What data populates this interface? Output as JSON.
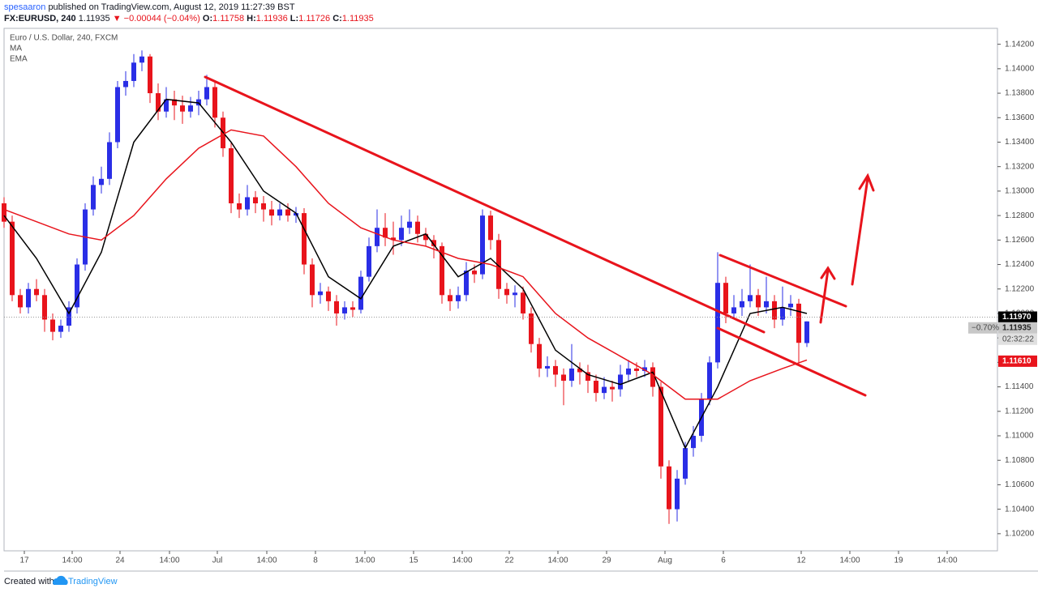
{
  "header": {
    "author": "spesaaron",
    "published": "published on TradingView.com, August 12, 2019 11:27:39 BST",
    "symbol": "FX:EURUSD, 240",
    "last": "1.11935",
    "change": "▼ −0.00044 (−0.04%)",
    "ohlc": [
      {
        "label": "O:",
        "value": "1.11758"
      },
      {
        "label": "H:",
        "value": "1.11936"
      },
      {
        "label": "L:",
        "value": "1.11726"
      },
      {
        "label": "C:",
        "value": "1.11935"
      }
    ]
  },
  "footer": {
    "created": "Created with",
    "brand": "TradingView"
  },
  "chart_data": {
    "type": "candlestick",
    "title": "Euro / U.S. Dollar, 240, FXCM",
    "up_color": "#2a2ee6",
    "down_color": "#e8141c",
    "grid": false,
    "open": [
      1.129,
      1.1275,
      1.1215,
      1.1205,
      1.122,
      1.1215,
      1.1195,
      1.1185,
      1.119,
      1.1205,
      1.124,
      1.1285,
      1.1305,
      1.131,
      1.134,
      1.1385,
      1.139,
      1.1405,
      1.141,
      1.138,
      1.1365,
      1.1375,
      1.137,
      1.1365,
      1.137,
      1.1375,
      1.1385,
      1.136,
      1.1335,
      1.129,
      1.1285,
      1.1295,
      1.129,
      1.1285,
      1.128,
      1.1285,
      1.128,
      1.1282,
      1.124,
      1.1215,
      1.1218,
      1.121,
      1.12,
      1.1205,
      1.1203,
      1.123,
      1.1255,
      1.127,
      1.1262,
      1.126,
      1.127,
      1.1275,
      1.1265,
      1.126,
      1.1255,
      1.1215,
      1.121,
      1.1215,
      1.1235,
      1.1232,
      1.128,
      1.126,
      1.122,
      1.1215,
      1.1217,
      1.12,
      1.1175,
      1.1155,
      1.1157,
      1.115,
      1.1145,
      1.1155,
      1.1152,
      1.1145,
      1.1135,
      1.114,
      1.1138,
      1.115,
      1.1155,
      1.1153,
      1.1156,
      1.114,
      1.1075,
      1.104,
      1.1065,
      1.109,
      1.11,
      1.113,
      1.116,
      1.1225,
      1.12,
      1.1205,
      1.121,
      1.1215,
      1.1205,
      1.121,
      1.1195,
      1.1205,
      1.1208,
      1.11758
    ],
    "high": [
      1.1295,
      1.128,
      1.122,
      1.1225,
      1.1228,
      1.122,
      1.12,
      1.1195,
      1.121,
      1.1245,
      1.129,
      1.1312,
      1.132,
      1.1348,
      1.139,
      1.1398,
      1.1412,
      1.1415,
      1.1412,
      1.1388,
      1.1385,
      1.1382,
      1.1378,
      1.1377,
      1.1382,
      1.1395,
      1.139,
      1.1365,
      1.134,
      1.1298,
      1.1305,
      1.13,
      1.1296,
      1.1292,
      1.129,
      1.129,
      1.1287,
      1.1286,
      1.1245,
      1.1225,
      1.1222,
      1.1215,
      1.121,
      1.121,
      1.1235,
      1.1262,
      1.1285,
      1.1282,
      1.1275,
      1.128,
      1.1285,
      1.128,
      1.127,
      1.1264,
      1.1258,
      1.122,
      1.1222,
      1.1242,
      1.124,
      1.1285,
      1.1284,
      1.1265,
      1.1225,
      1.1223,
      1.1222,
      1.1205,
      1.118,
      1.1165,
      1.1162,
      1.1155,
      1.1175,
      1.116,
      1.1158,
      1.115,
      1.1148,
      1.1145,
      1.1158,
      1.1162,
      1.116,
      1.1162,
      1.116,
      1.1144,
      1.108,
      1.1072,
      1.1095,
      1.1108,
      1.1135,
      1.1165,
      1.125,
      1.123,
      1.1215,
      1.122,
      1.124,
      1.122,
      1.123,
      1.1215,
      1.1222,
      1.1215,
      1.1212,
      1.11936
    ],
    "low": [
      1.127,
      1.121,
      1.12,
      1.12,
      1.121,
      1.1185,
      1.1178,
      1.118,
      1.1185,
      1.12,
      1.1235,
      1.128,
      1.1298,
      1.1305,
      1.1335,
      1.1378,
      1.1385,
      1.1398,
      1.1372,
      1.1358,
      1.136,
      1.1358,
      1.1355,
      1.136,
      1.1362,
      1.137,
      1.1352,
      1.1328,
      1.1282,
      1.1278,
      1.128,
      1.1282,
      1.1275,
      1.1272,
      1.1276,
      1.1275,
      1.1274,
      1.1232,
      1.1205,
      1.1208,
      1.1202,
      1.119,
      1.1195,
      1.1197,
      1.12,
      1.1226,
      1.125,
      1.1255,
      1.1248,
      1.1255,
      1.1265,
      1.1258,
      1.1255,
      1.1245,
      1.1208,
      1.1202,
      1.1204,
      1.121,
      1.1225,
      1.1228,
      1.1252,
      1.1212,
      1.1208,
      1.1205,
      1.1195,
      1.1168,
      1.1148,
      1.1148,
      1.114,
      1.1125,
      1.114,
      1.1142,
      1.1135,
      1.1128,
      1.113,
      1.1128,
      1.1132,
      1.1145,
      1.1148,
      1.1148,
      1.1132,
      1.1065,
      1.1028,
      1.103,
      1.106,
      1.1083,
      1.1095,
      1.1125,
      1.1155,
      1.1192,
      1.1195,
      1.1198,
      1.1205,
      1.1198,
      1.12,
      1.1188,
      1.119,
      1.1198,
      1.116,
      1.11726
    ],
    "close": [
      1.1275,
      1.1215,
      1.1205,
      1.122,
      1.1215,
      1.1195,
      1.1185,
      1.119,
      1.1205,
      1.124,
      1.1285,
      1.1305,
      1.131,
      1.134,
      1.1385,
      1.139,
      1.1405,
      1.141,
      1.138,
      1.1365,
      1.1375,
      1.137,
      1.1365,
      1.137,
      1.1375,
      1.1385,
      1.136,
      1.1335,
      1.129,
      1.1285,
      1.1295,
      1.129,
      1.1285,
      1.128,
      1.1285,
      1.128,
      1.1282,
      1.124,
      1.1215,
      1.1218,
      1.121,
      1.12,
      1.1205,
      1.1203,
      1.123,
      1.1255,
      1.127,
      1.1262,
      1.126,
      1.127,
      1.1275,
      1.1265,
      1.126,
      1.1255,
      1.1215,
      1.121,
      1.1215,
      1.1235,
      1.1232,
      1.128,
      1.126,
      1.122,
      1.1215,
      1.1217,
      1.12,
      1.1175,
      1.1155,
      1.1157,
      1.115,
      1.1145,
      1.1155,
      1.1152,
      1.1145,
      1.1135,
      1.114,
      1.1138,
      1.115,
      1.1155,
      1.1153,
      1.1156,
      1.114,
      1.1075,
      1.104,
      1.1065,
      1.109,
      1.11,
      1.113,
      1.116,
      1.1225,
      1.12,
      1.1205,
      1.121,
      1.1215,
      1.1205,
      1.121,
      1.1195,
      1.1205,
      1.1208,
      1.1176,
      1.11935
    ],
    "series": [
      {
        "name": "MA",
        "color": "#000000",
        "x": [
          0,
          4,
          8,
          12,
          16,
          20,
          24,
          28,
          32,
          36,
          40,
          44,
          48,
          52,
          56,
          60,
          64,
          68,
          72,
          76,
          80,
          84,
          88,
          92,
          96,
          99
        ],
        "values": [
          1.128,
          1.1245,
          1.12,
          1.125,
          1.134,
          1.1375,
          1.1372,
          1.134,
          1.13,
          1.1282,
          1.123,
          1.1212,
          1.1255,
          1.1265,
          1.123,
          1.1245,
          1.122,
          1.117,
          1.115,
          1.1142,
          1.1152,
          1.109,
          1.114,
          1.12,
          1.1205,
          1.12
        ]
      },
      {
        "name": "EMA",
        "color": "#e8141c",
        "x": [
          0,
          8,
          12,
          16,
          20,
          24,
          28,
          32,
          36,
          40,
          44,
          48,
          52,
          56,
          60,
          64,
          68,
          72,
          76,
          80,
          84,
          88,
          92,
          96,
          99
        ],
        "values": [
          1.1285,
          1.1265,
          1.126,
          1.128,
          1.131,
          1.1335,
          1.135,
          1.1345,
          1.132,
          1.129,
          1.127,
          1.126,
          1.1255,
          1.1245,
          1.124,
          1.123,
          1.12,
          1.118,
          1.1165,
          1.115,
          1.113,
          1.113,
          1.1145,
          1.1155,
          1.1162
        ]
      }
    ],
    "xlim": [
      -0.5,
      122
    ],
    "xticks": [
      {
        "value": 2.5,
        "label": "17"
      },
      {
        "value": 8.4,
        "label": "14:00"
      },
      {
        "value": 14.3,
        "label": "24"
      },
      {
        "value": 20.4,
        "label": "14:00"
      },
      {
        "value": 26.3,
        "label": "Jul"
      },
      {
        "value": 32.4,
        "label": "14:00"
      },
      {
        "value": 38.4,
        "label": "8"
      },
      {
        "value": 44.5,
        "label": "14:00"
      },
      {
        "value": 50.5,
        "label": "15"
      },
      {
        "value": 56.5,
        "label": "14:00"
      },
      {
        "value": 62.3,
        "label": "22"
      },
      {
        "value": 68.3,
        "label": "14:00"
      },
      {
        "value": 74.3,
        "label": "29"
      },
      {
        "value": 81.5,
        "label": "Aug"
      },
      {
        "value": 88.7,
        "label": "6"
      },
      {
        "value": 98.3,
        "label": "12"
      },
      {
        "value": 104.3,
        "label": "14:00"
      },
      {
        "value": 110.3,
        "label": "19"
      },
      {
        "value": 116.3,
        "label": "14:00"
      }
    ],
    "ylim": [
      1.1006,
      1.1433
    ],
    "yticks": [
      {
        "value": 1.102,
        "label": "1.10200"
      },
      {
        "value": 1.104,
        "label": "1.10400"
      },
      {
        "value": 1.106,
        "label": "1.10600"
      },
      {
        "value": 1.108,
        "label": "1.10800"
      },
      {
        "value": 1.11,
        "label": "1.11000"
      },
      {
        "value": 1.112,
        "label": "1.11200"
      },
      {
        "value": 1.114,
        "label": "1.11400"
      },
      {
        "value": 1.116,
        "label": "1.11600"
      },
      {
        "value": 1.118,
        "label": "1.11800"
      },
      {
        "value": 1.12,
        "label": "1.12000"
      },
      {
        "value": 1.122,
        "label": "1.12200"
      },
      {
        "value": 1.124,
        "label": "1.12400"
      },
      {
        "value": 1.126,
        "label": "1.12600"
      },
      {
        "value": 1.128,
        "label": "1.12800"
      },
      {
        "value": 1.13,
        "label": "1.13000"
      },
      {
        "value": 1.132,
        "label": "1.13200"
      },
      {
        "value": 1.134,
        "label": "1.13400"
      },
      {
        "value": 1.136,
        "label": "1.13600"
      },
      {
        "value": 1.138,
        "label": "1.13800"
      },
      {
        "value": 1.14,
        "label": "1.14000"
      },
      {
        "value": 1.142,
        "label": "1.14200"
      }
    ],
    "price_markers": [
      {
        "value": 1.1197,
        "label": "1.11970",
        "color": "#000000"
      },
      {
        "value": 1.11935,
        "label": "1.11935",
        "color": "#c8c8c8",
        "change": "−0.70%",
        "countdown": "02:32:22"
      },
      {
        "value": 1.1161,
        "label": "1.11610",
        "color": "#e8141c"
      }
    ]
  }
}
